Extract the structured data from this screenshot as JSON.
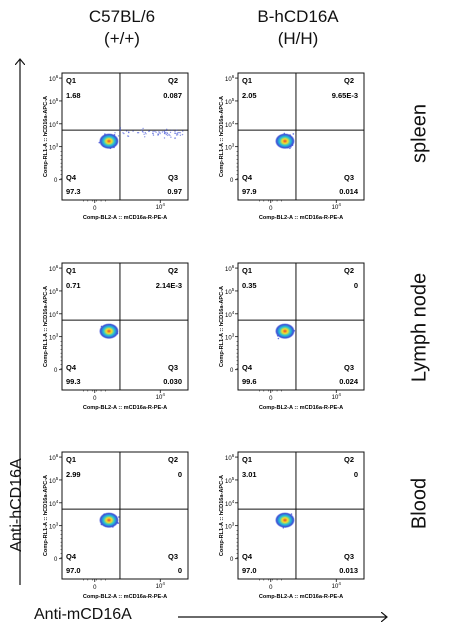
{
  "columns": [
    "C57BL/6\n(+/+)",
    "B-hCD16A\n(H/H)"
  ],
  "column_lines": [
    [
      "C57BL/6",
      "(+/+)"
    ],
    [
      "B-hCD16A",
      "(H/H)"
    ]
  ],
  "rows": [
    "spleen",
    "Lymph node",
    "Blood"
  ],
  "y_axis_title": "Anti-hCD16A",
  "x_axis_title": "Anti-mCD16A",
  "colors": {
    "ink": "#111111",
    "cluster_outer": "#3b4dd6",
    "cluster_mid": "#22c3d6",
    "cluster_inner": "#f3e02a",
    "cluster_core": "#e8452c"
  },
  "chart_data": [
    {
      "type": "scatter",
      "subtype": "flow-cytometry-quadrant",
      "sample": "C57BL/6 (+/+)",
      "tissue": "spleen",
      "xlabel": "Comp-BL2-A :: mCD16a-R-PE-A",
      "ylabel": "Comp-RL1-A :: hCD16a-APC-A",
      "x_ticks": [
        "0",
        "10^4"
      ],
      "y_ticks": [
        "0",
        "10^3",
        "10^4",
        "10^5",
        "10^6"
      ],
      "quadrants": {
        "Q1": "1.68",
        "Q2": "0.087",
        "Q3": "0.97",
        "Q4": "97.3"
      },
      "x_streak": true
    },
    {
      "type": "scatter",
      "subtype": "flow-cytometry-quadrant",
      "sample": "B-hCD16A (H/H)",
      "tissue": "spleen",
      "xlabel": "Comp-BL2-A :: mCD16a-R-PE-A",
      "ylabel": "Comp-RL1-A :: hCD16a-APC-A",
      "x_ticks": [
        "0",
        "10^4"
      ],
      "y_ticks": [
        "0",
        "10^3",
        "10^4",
        "10^5",
        "10^6"
      ],
      "quadrants": {
        "Q1": "2.05",
        "Q2": "9.65E-3",
        "Q3": "0.014",
        "Q4": "97.9"
      },
      "x_streak": false
    },
    {
      "type": "scatter",
      "subtype": "flow-cytometry-quadrant",
      "sample": "C57BL/6 (+/+)",
      "tissue": "Lymph node",
      "xlabel": "Comp-BL2-A :: mCD16a-R-PE-A",
      "ylabel": "Comp-RL1-A :: hCD16a-APC-A",
      "x_ticks": [
        "0",
        "10^4"
      ],
      "y_ticks": [
        "0",
        "10^3",
        "10^4",
        "10^5",
        "10^6"
      ],
      "quadrants": {
        "Q1": "0.71",
        "Q2": "2.14E-3",
        "Q3": "0.030",
        "Q4": "99.3"
      },
      "x_streak": false
    },
    {
      "type": "scatter",
      "subtype": "flow-cytometry-quadrant",
      "sample": "B-hCD16A (H/H)",
      "tissue": "Lymph node",
      "xlabel": "Comp-BL2-A :: mCD16a-R-PE-A",
      "ylabel": "Comp-RL1-A :: hCD16a-APC-A",
      "x_ticks": [
        "0",
        "10^4"
      ],
      "y_ticks": [
        "0",
        "10^3",
        "10^4",
        "10^5",
        "10^6"
      ],
      "quadrants": {
        "Q1": "0.35",
        "Q2": "0",
        "Q3": "0.024",
        "Q4": "99.6"
      },
      "x_streak": false
    },
    {
      "type": "scatter",
      "subtype": "flow-cytometry-quadrant",
      "sample": "C57BL/6 (+/+)",
      "tissue": "Blood",
      "xlabel": "Comp-BL2-A :: mCD16a-R-PE-A",
      "ylabel": "Comp-RL1-A :: hCD16a-APC-A",
      "x_ticks": [
        "0",
        "10^4"
      ],
      "y_ticks": [
        "0",
        "10^3",
        "10^4",
        "10^5",
        "10^6"
      ],
      "quadrants": {
        "Q1": "2.99",
        "Q2": "0",
        "Q3": "0",
        "Q4": "97.0"
      },
      "x_streak": false
    },
    {
      "type": "scatter",
      "subtype": "flow-cytometry-quadrant",
      "sample": "B-hCD16A (H/H)",
      "tissue": "Blood",
      "xlabel": "Comp-BL2-A :: mCD16a-R-PE-A",
      "ylabel": "Comp-RL1-A :: hCD16a-APC-A",
      "x_ticks": [
        "0",
        "10^4"
      ],
      "y_ticks": [
        "0",
        "10^3",
        "10^4",
        "10^5",
        "10^6"
      ],
      "quadrants": {
        "Q1": "3.01",
        "Q2": "0",
        "Q3": "0.013",
        "Q4": "97.0"
      },
      "x_streak": false
    }
  ]
}
